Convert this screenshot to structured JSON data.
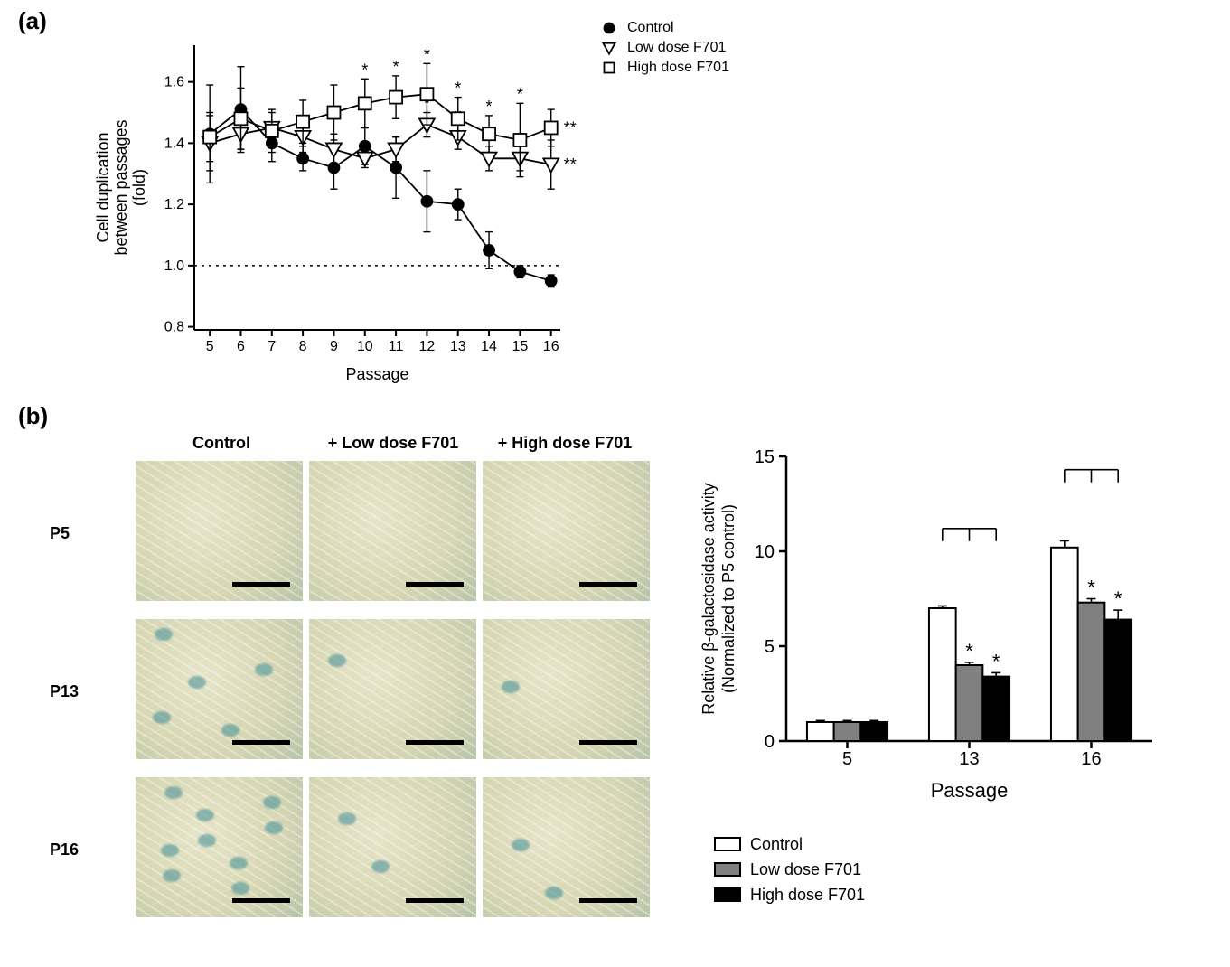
{
  "panel_a": {
    "label": "(a)",
    "type": "line-scatter-errorbar",
    "background_color": "#ffffff",
    "axis_color": "#000000",
    "axis_stroke_width": 2,
    "tick_length": 7,
    "label_fontsize": 18,
    "tick_fontsize": 16,
    "x": {
      "label": "Passage",
      "ticks": [
        5,
        6,
        7,
        8,
        9,
        10,
        11,
        12,
        13,
        14,
        15,
        16
      ],
      "min": 4.5,
      "max": 16.3
    },
    "y": {
      "label": "Cell duplication\nbetween passages\n(fold)",
      "ticks": [
        0.8,
        1.0,
        1.2,
        1.4,
        1.6
      ],
      "min": 0.79,
      "max": 1.72
    },
    "ref_line": {
      "y": 1.0,
      "dash": "3,5",
      "color": "#000000",
      "width": 1.4
    },
    "series": [
      {
        "name": "Control",
        "marker": "filled-circle",
        "marker_fill": "#000000",
        "marker_stroke": "#000000",
        "marker_size": 6,
        "line_color": "#000000",
        "line_width": 1.8,
        "points": [
          {
            "x": 5,
            "y": 1.43,
            "err": 0.16
          },
          {
            "x": 6,
            "y": 1.51,
            "err": 0.14
          },
          {
            "x": 7,
            "y": 1.4,
            "err": 0.06
          },
          {
            "x": 8,
            "y": 1.35,
            "err": 0.04
          },
          {
            "x": 9,
            "y": 1.32,
            "err": 0.07
          },
          {
            "x": 10,
            "y": 1.39,
            "err": 0.06
          },
          {
            "x": 11,
            "y": 1.32,
            "err": 0.1
          },
          {
            "x": 12,
            "y": 1.21,
            "err": 0.1
          },
          {
            "x": 13,
            "y": 1.2,
            "err": 0.05
          },
          {
            "x": 14,
            "y": 1.05,
            "err": 0.06
          },
          {
            "x": 15,
            "y": 0.98,
            "err": 0.02
          },
          {
            "x": 16,
            "y": 0.95,
            "err": 0.02
          }
        ]
      },
      {
        "name": "Low dose F701",
        "marker": "open-down-triangle",
        "marker_fill": "#ffffff",
        "marker_stroke": "#000000",
        "marker_size": 7,
        "line_color": "#000000",
        "line_width": 1.8,
        "end_annotation": "**",
        "points": [
          {
            "x": 5,
            "y": 1.4,
            "err": 0.09
          },
          {
            "x": 6,
            "y": 1.43,
            "err": 0.05
          },
          {
            "x": 7,
            "y": 1.45,
            "err": 0.05
          },
          {
            "x": 8,
            "y": 1.42,
            "err": 0.05
          },
          {
            "x": 9,
            "y": 1.38,
            "err": 0.05
          },
          {
            "x": 10,
            "y": 1.35,
            "err": 0.03
          },
          {
            "x": 11,
            "y": 1.38,
            "err": 0.04
          },
          {
            "x": 12,
            "y": 1.46,
            "err": 0.04,
            "sig": "*"
          },
          {
            "x": 13,
            "y": 1.42,
            "err": 0.04,
            "sig": "*"
          },
          {
            "x": 14,
            "y": 1.35,
            "err": 0.04,
            "sig": "*"
          },
          {
            "x": 15,
            "y": 1.35,
            "err": 0.04,
            "sig": "*"
          },
          {
            "x": 16,
            "y": 1.33,
            "err": 0.08
          }
        ]
      },
      {
        "name": "High dose F701",
        "marker": "open-square",
        "marker_fill": "#ffffff",
        "marker_stroke": "#000000",
        "marker_size": 7,
        "line_color": "#000000",
        "line_width": 1.8,
        "end_annotation": "**",
        "points": [
          {
            "x": 5,
            "y": 1.42,
            "err": 0.08
          },
          {
            "x": 6,
            "y": 1.48,
            "err": 0.1
          },
          {
            "x": 7,
            "y": 1.44,
            "err": 0.07
          },
          {
            "x": 8,
            "y": 1.47,
            "err": 0.07
          },
          {
            "x": 9,
            "y": 1.5,
            "err": 0.09
          },
          {
            "x": 10,
            "y": 1.53,
            "err": 0.08,
            "sig": "*"
          },
          {
            "x": 11,
            "y": 1.55,
            "err": 0.07,
            "sig": "*"
          },
          {
            "x": 12,
            "y": 1.56,
            "err": 0.1,
            "sig": "*"
          },
          {
            "x": 13,
            "y": 1.48,
            "err": 0.07,
            "sig": "*"
          },
          {
            "x": 14,
            "y": 1.43,
            "err": 0.06,
            "sig": "*"
          },
          {
            "x": 15,
            "y": 1.41,
            "err": 0.12,
            "sig": "*"
          },
          {
            "x": 16,
            "y": 1.45,
            "err": 0.06
          }
        ]
      }
    ],
    "legend_items": [
      {
        "marker": "filled-circle",
        "label": "Control"
      },
      {
        "marker": "open-down-triangle",
        "label": "Low dose F701"
      },
      {
        "marker": "open-square",
        "label": "High dose F701"
      }
    ]
  },
  "panel_b": {
    "label": "(b)",
    "micrographs": {
      "columns": [
        "Control",
        "+ Low dose F701",
        "+ High dose F701"
      ],
      "rows": [
        "P5",
        "P13",
        "P16"
      ],
      "cell_border_color": "#000000",
      "scale_bar_color": "#000000",
      "blue_stain": [
        [
          0,
          0,
          0
        ],
        [
          5,
          1,
          1
        ],
        [
          9,
          2,
          2
        ]
      ]
    },
    "bar_chart": {
      "type": "grouped-bar-errorbar",
      "background_color": "#ffffff",
      "axis_color": "#000000",
      "axis_stroke_width": 2.5,
      "tick_length": 8,
      "label_fontsize": 22,
      "tick_fontsize": 20,
      "x": {
        "label": "Passage",
        "groups": [
          "5",
          "13",
          "16"
        ]
      },
      "y": {
        "label": "Relative β-galactosidase activity\n(Normalized to P5 control)",
        "ticks": [
          0,
          5,
          10,
          15
        ],
        "min": 0,
        "max": 15
      },
      "series": [
        {
          "name": "Control",
          "fill": "#ffffff",
          "stroke": "#000000"
        },
        {
          "name": "Low dose F701",
          "fill": "#808080",
          "stroke": "#000000"
        },
        {
          "name": "High dose F701",
          "fill": "#000000",
          "stroke": "#000000"
        }
      ],
      "values": [
        [
          {
            "v": 1.0,
            "e": 0.08
          },
          {
            "v": 1.0,
            "e": 0.08
          },
          {
            "v": 1.0,
            "e": 0.08
          }
        ],
        [
          {
            "v": 7.0,
            "e": 0.12
          },
          {
            "v": 4.0,
            "e": 0.15,
            "sig": "*"
          },
          {
            "v": 3.4,
            "e": 0.2,
            "sig": "*"
          }
        ],
        [
          {
            "v": 10.2,
            "e": 0.35
          },
          {
            "v": 7.3,
            "e": 0.2,
            "sig": "*"
          },
          {
            "v": 6.4,
            "e": 0.5,
            "sig": "*"
          }
        ]
      ],
      "brackets": [
        {
          "group": 1,
          "from": 0,
          "to": [
            1,
            2
          ],
          "y": 11.2
        },
        {
          "group": 2,
          "from": 0,
          "to": [
            1,
            2
          ],
          "y": 14.3
        }
      ],
      "bar_width": 0.8,
      "bar_stroke_width": 2
    },
    "legend_items": [
      {
        "fill": "#ffffff",
        "label": "Control"
      },
      {
        "fill": "#808080",
        "label": "Low dose F701"
      },
      {
        "fill": "#000000",
        "label": "High dose F701"
      }
    ]
  }
}
